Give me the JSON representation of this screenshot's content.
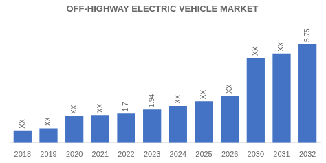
{
  "chart_data": {
    "type": "bar",
    "title": "OFF-HIGHWAY ELECTRIC VEHICLE MARKET",
    "categories": [
      "2018",
      "2019",
      "2020",
      "2021",
      "2022",
      "2023",
      "2024",
      "2025",
      "2026",
      "2030",
      "2031",
      "2032"
    ],
    "values": [
      0.72,
      0.85,
      1.55,
      1.62,
      1.7,
      1.94,
      2.15,
      2.42,
      2.75,
      4.95,
      5.2,
      5.75
    ],
    "value_labels": [
      "XX",
      "XX",
      "XX",
      "XX",
      "1.7",
      "1.94",
      "XX",
      "XX",
      "XX",
      "XX",
      "XX",
      "5.75"
    ],
    "data_labels": true,
    "color": "#4472C4",
    "ylim": [
      0,
      7.2
    ],
    "tick_labels": "x",
    "grid": false
  }
}
